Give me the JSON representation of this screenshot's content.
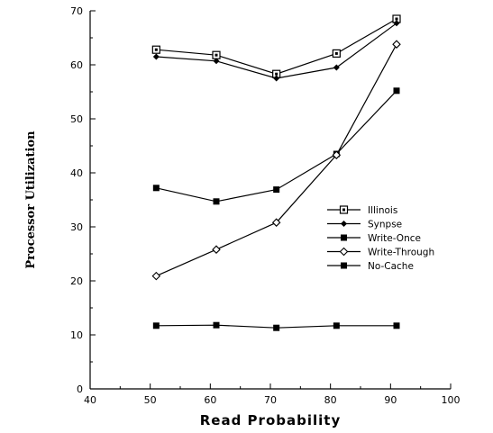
{
  "chart_data": {
    "type": "line",
    "xlabel": "Read Probability",
    "ylabel": "Processor Utilization",
    "xlim": [
      40,
      100
    ],
    "ylim": [
      0,
      70
    ],
    "x_ticks": [
      40,
      50,
      60,
      70,
      80,
      90,
      100
    ],
    "y_ticks": [
      0,
      10,
      20,
      30,
      40,
      50,
      60,
      70
    ],
    "grid": false,
    "legend_position": "center-right",
    "x": [
      51,
      61,
      71,
      81,
      91
    ],
    "series": [
      {
        "name": "Illinois",
        "marker": "open-square",
        "values": [
          62.8,
          61.8,
          58.3,
          62.1,
          68.5
        ]
      },
      {
        "name": "Synapse",
        "marker": "filled-diamond",
        "values": [
          61.5,
          60.7,
          57.5,
          59.5,
          67.7
        ]
      },
      {
        "name": "Write-Once",
        "marker": "filled-square",
        "values": [
          37.2,
          34.7,
          36.9,
          43.5,
          55.2
        ]
      },
      {
        "name": "Write-Through",
        "marker": "open-diamond",
        "values": [
          20.9,
          25.8,
          30.8,
          43.3,
          63.8
        ]
      },
      {
        "name": "No-Cache",
        "marker": "filled-square",
        "values": [
          11.7,
          11.8,
          11.3,
          11.7,
          11.7
        ]
      }
    ],
    "legend_labels": [
      "Illinois",
      "Synpse",
      "Write-Once",
      "Write-Through",
      "No-Cache"
    ]
  }
}
